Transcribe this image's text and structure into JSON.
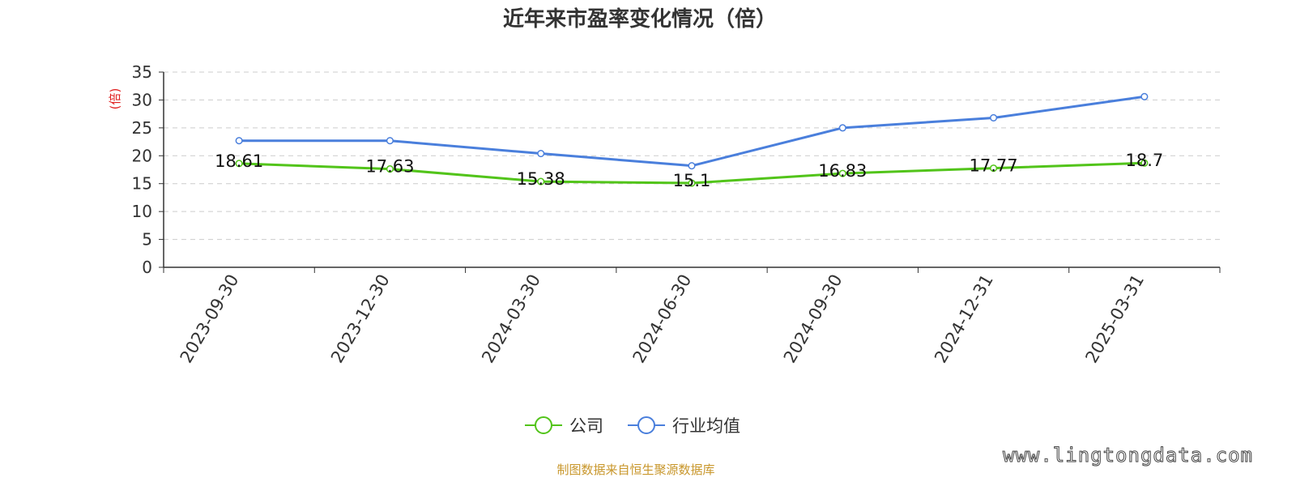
{
  "chart_data": {
    "type": "line",
    "title": "近年来市盈率变化情况（倍）",
    "ylabel": "(倍)",
    "xlabel": "",
    "categories": [
      "2023-09-30",
      "2023-12-30",
      "2024-03-30",
      "2024-06-30",
      "2024-09-30",
      "2024-12-31",
      "2025-03-31"
    ],
    "ylim": [
      0,
      35
    ],
    "yticks": [
      0,
      5,
      10,
      15,
      20,
      25,
      30,
      35
    ],
    "grid": true,
    "legend_position": "bottom",
    "series": [
      {
        "name": "公司",
        "color": "#52c41a",
        "values": [
          18.61,
          17.63,
          15.38,
          15.1,
          16.83,
          17.77,
          18.7
        ],
        "labels": [
          "18.61",
          "17.63",
          "15.38",
          "15.1",
          "16.83",
          "17.77",
          "18.7"
        ]
      },
      {
        "name": "行业均值",
        "color": "#4a7fdc",
        "values": [
          22.7,
          22.7,
          20.4,
          18.2,
          25.0,
          26.8,
          30.6
        ]
      }
    ]
  },
  "footer": {
    "source": "制图数据来自恒生聚源数据库",
    "watermark": "www.lingtongdata.com"
  }
}
